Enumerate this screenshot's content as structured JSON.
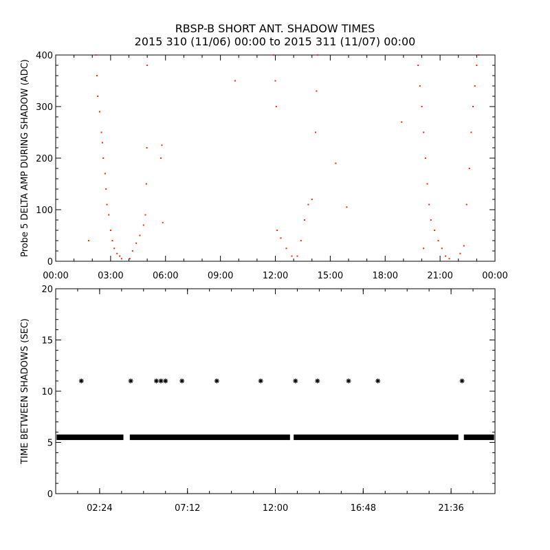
{
  "title_line1": "RBSP-B SHORT ANT. SHADOW TIMES",
  "title_line2": "2015 310 (11/06) 00:00 to 2015 311 (11/07) 00:00",
  "colors": {
    "top_points": "#ff2200",
    "bottom_points": "#000000",
    "axes": "#000000"
  },
  "chart_data": [
    {
      "type": "scatter",
      "ylabel": "Probe 5 DELTA AMP DURING SHADOW (ADC)",
      "xlim": [
        0,
        24
      ],
      "ylim": [
        0,
        400
      ],
      "x_unit": "hours",
      "xtick_values": [
        0,
        3,
        6,
        9,
        12,
        15,
        18,
        21,
        24
      ],
      "xtick_labels": [
        "00:00",
        "03:00",
        "06:00",
        "09:00",
        "12:00",
        "15:00",
        "18:00",
        "21:00",
        "00:00"
      ],
      "ytick_values": [
        0,
        100,
        200,
        300,
        400
      ],
      "ytick_labels": [
        "0",
        "100",
        "200",
        "300",
        "400"
      ],
      "series": [
        {
          "marker": "dot",
          "color": "#ff2200",
          "points": [
            [
              2.2,
              400
            ],
            [
              2.25,
              360
            ],
            [
              2.3,
              320
            ],
            [
              2.4,
              290
            ],
            [
              2.5,
              250
            ],
            [
              2.55,
              230
            ],
            [
              2.6,
              200
            ],
            [
              2.7,
              170
            ],
            [
              2.75,
              140
            ],
            [
              2.8,
              110
            ],
            [
              2.9,
              90
            ],
            [
              3.0,
              60
            ],
            [
              3.1,
              40
            ],
            [
              3.2,
              25
            ],
            [
              3.35,
              15
            ],
            [
              3.5,
              10
            ],
            [
              3.6,
              5
            ],
            [
              4.05,
              5
            ],
            [
              4.2,
              20
            ],
            [
              4.4,
              35
            ],
            [
              4.6,
              50
            ],
            [
              4.8,
              70
            ],
            [
              4.9,
              90
            ],
            [
              4.95,
              150
            ],
            [
              4.98,
              220
            ],
            [
              5.0,
              380
            ],
            [
              1.8,
              40
            ],
            [
              5.8,
              225
            ],
            [
              5.75,
              200
            ],
            [
              5.85,
              75
            ],
            [
              9.8,
              350
            ],
            [
              11.9,
              400
            ],
            [
              12.0,
              350
            ],
            [
              12.05,
              300
            ],
            [
              12.1,
              60
            ],
            [
              12.3,
              45
            ],
            [
              12.6,
              25
            ],
            [
              12.9,
              10
            ],
            [
              13.2,
              10
            ],
            [
              13.4,
              40
            ],
            [
              13.6,
              80
            ],
            [
              13.8,
              110
            ],
            [
              14.0,
              120
            ],
            [
              14.2,
              250
            ],
            [
              14.25,
              330
            ],
            [
              14.3,
              400
            ],
            [
              15.3,
              190
            ],
            [
              15.9,
              105
            ],
            [
              18.9,
              270
            ],
            [
              19.8,
              380
            ],
            [
              19.9,
              340
            ],
            [
              20.0,
              300
            ],
            [
              20.1,
              250
            ],
            [
              20.2,
              200
            ],
            [
              20.3,
              150
            ],
            [
              20.4,
              110
            ],
            [
              20.5,
              80
            ],
            [
              20.7,
              60
            ],
            [
              20.9,
              40
            ],
            [
              21.1,
              25
            ],
            [
              21.3,
              10
            ],
            [
              21.5,
              5
            ],
            [
              22.1,
              15
            ],
            [
              22.3,
              30
            ],
            [
              22.45,
              110
            ],
            [
              22.6,
              180
            ],
            [
              22.7,
              250
            ],
            [
              22.8,
              300
            ],
            [
              22.9,
              340
            ],
            [
              23.0,
              380
            ],
            [
              23.1,
              400
            ],
            [
              20.1,
              25
            ]
          ]
        }
      ]
    },
    {
      "type": "scatter",
      "ylabel": "TIME BETWEEN SHADOWS (SEC)",
      "xlim": [
        0,
        24
      ],
      "ylim": [
        0,
        20
      ],
      "x_unit": "hours",
      "xtick_values": [
        2.4,
        7.2,
        12.0,
        16.8,
        21.6
      ],
      "xtick_labels": [
        "02:24",
        "07:12",
        "12:00",
        "16:48",
        "21:36"
      ],
      "ytick_values": [
        0,
        5,
        10,
        15,
        20
      ],
      "ytick_labels": [
        "0",
        "5",
        "10",
        "15",
        "20"
      ],
      "series": [
        {
          "name": "",
          "marker": "asterisk",
          "color": "#000000",
          "baseline_value": 5.5,
          "baseline_segments": [
            [
              0.05,
              3.7
            ],
            [
              4.05,
              12.8
            ],
            [
              13.0,
              22.0
            ],
            [
              22.3,
              23.95
            ]
          ],
          "outliers": [
            [
              1.4,
              11
            ],
            [
              4.1,
              11
            ],
            [
              5.5,
              11
            ],
            [
              5.75,
              11
            ],
            [
              6.0,
              11
            ],
            [
              6.9,
              11
            ],
            [
              8.8,
              11
            ],
            [
              11.2,
              11
            ],
            [
              13.1,
              11
            ],
            [
              14.3,
              11
            ],
            [
              16.0,
              11
            ],
            [
              17.6,
              11
            ],
            [
              22.2,
              11
            ]
          ]
        }
      ]
    }
  ]
}
